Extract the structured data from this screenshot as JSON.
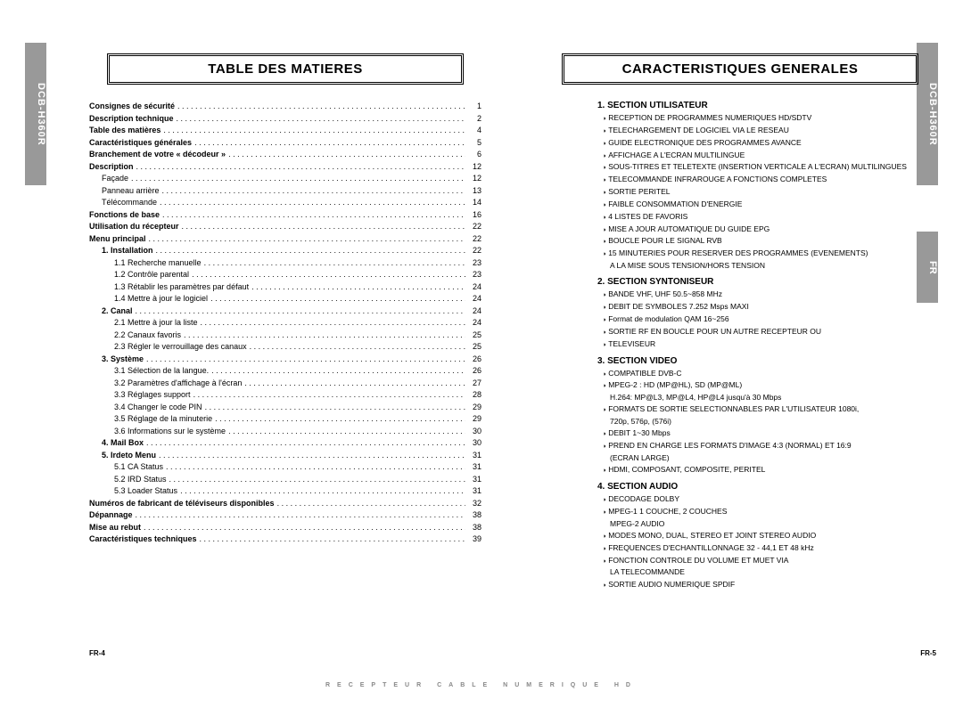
{
  "model": "DCB-H360R",
  "lang_tab": "FR",
  "titles": {
    "left": "TABLE DES MATIERES",
    "right": "CARACTERISTIQUES GENERALES"
  },
  "toc": [
    {
      "label": "Consignes de sécurité",
      "page": "1",
      "bold": true,
      "indent": 0
    },
    {
      "label": "Description technique",
      "page": "2",
      "bold": true,
      "indent": 0
    },
    {
      "label": "Table des matières",
      "page": "4",
      "bold": true,
      "indent": 0
    },
    {
      "label": "Caractéristiques générales",
      "page": "5",
      "bold": true,
      "indent": 0
    },
    {
      "label": "Branchement de votre « décodeur »",
      "page": "6",
      "bold": true,
      "indent": 0
    },
    {
      "label": "Description",
      "page": "12",
      "bold": true,
      "indent": 0
    },
    {
      "label": "Façade",
      "page": "12",
      "bold": false,
      "indent": 1
    },
    {
      "label": "Panneau arrière",
      "page": "13",
      "bold": false,
      "indent": 1
    },
    {
      "label": "Télécommande",
      "page": "14",
      "bold": false,
      "indent": 1
    },
    {
      "label": "Fonctions de base",
      "page": "16",
      "bold": true,
      "indent": 0
    },
    {
      "label": "Utilisation du récepteur",
      "page": "22",
      "bold": true,
      "indent": 0
    },
    {
      "label": "Menu principal",
      "page": "22",
      "bold": true,
      "indent": 0
    },
    {
      "label": "1. Installation",
      "page": "22",
      "bold": true,
      "indent": 1
    },
    {
      "label": "1.1 Recherche manuelle",
      "page": "23",
      "bold": false,
      "indent": 2
    },
    {
      "label": "1.2 Contrôle parental",
      "page": "23",
      "bold": false,
      "indent": 2
    },
    {
      "label": "1.3 Rétablir les paramètres par défaut",
      "page": "24",
      "bold": false,
      "indent": 2
    },
    {
      "label": "1.4 Mettre à jour le logiciel",
      "page": "24",
      "bold": false,
      "indent": 2
    },
    {
      "label": "2. Canal",
      "page": "24",
      "bold": true,
      "indent": 1
    },
    {
      "label": "2.1 Mettre à jour la liste",
      "page": "24",
      "bold": false,
      "indent": 2
    },
    {
      "label": "2.2 Canaux favoris",
      "page": "25",
      "bold": false,
      "indent": 2
    },
    {
      "label": "2.3 Régler le verrouillage des canaux",
      "page": "25",
      "bold": false,
      "indent": 2
    },
    {
      "label": "3. Système",
      "page": "26",
      "bold": true,
      "indent": 1
    },
    {
      "label": "3.1 Sélection de la langue.",
      "page": "26",
      "bold": false,
      "indent": 2
    },
    {
      "label": "3.2 Paramètres d'affichage à l'écran",
      "page": "27",
      "bold": false,
      "indent": 2
    },
    {
      "label": "3.3 Réglages support",
      "page": "28",
      "bold": false,
      "indent": 2
    },
    {
      "label": "3.4 Changer le code PIN",
      "page": "29",
      "bold": false,
      "indent": 2
    },
    {
      "label": "3.5 Réglage de la minuterie",
      "page": "29",
      "bold": false,
      "indent": 2
    },
    {
      "label": "3.6 Informations sur le système",
      "page": "30",
      "bold": false,
      "indent": 2
    },
    {
      "label": "4. Mail Box",
      "page": "30",
      "bold": true,
      "indent": 1
    },
    {
      "label": "5. Irdeto Menu",
      "page": "31",
      "bold": true,
      "indent": 1
    },
    {
      "label": "5.1 CA Status",
      "page": "31",
      "bold": false,
      "indent": 2
    },
    {
      "label": "5.2 IRD Status",
      "page": "31",
      "bold": false,
      "indent": 2
    },
    {
      "label": "5.3 Loader Status",
      "page": "31",
      "bold": false,
      "indent": 2
    },
    {
      "label": "Numéros de fabricant de téléviseurs disponibles",
      "page": "32",
      "bold": true,
      "indent": 0
    },
    {
      "label": "Dépannage",
      "page": "38",
      "bold": true,
      "indent": 0
    },
    {
      "label": "Mise au rebut",
      "page": "38",
      "bold": true,
      "indent": 0
    },
    {
      "label": "Caractéristiques techniques",
      "page": "39",
      "bold": true,
      "indent": 0
    }
  ],
  "sections": [
    {
      "head": "1. SECTION UTILISATEUR",
      "items": [
        {
          "t": "RECEPTION DE PROGRAMMES NUMERIQUES HD/SDTV"
        },
        {
          "t": "TELECHARGEMENT DE LOGICIEL VIA LE RESEAU"
        },
        {
          "t": "GUIDE ELECTRONIQUE DES PROGRAMMES AVANCE"
        },
        {
          "t": "AFFICHAGE A L'ECRAN MULTILINGUE"
        },
        {
          "t": "SOUS-TITRES ET TELETEXTE (INSERTION VERTICALE A L'ECRAN) MULTILINGUES"
        },
        {
          "t": "TELECOMMANDE INFRAROUGE A FONCTIONS COMPLETES"
        },
        {
          "t": "SORTIE PERITEL"
        },
        {
          "t": "FAIBLE CONSOMMATION D'ENERGIE"
        },
        {
          "t": "4 LISTES DE FAVORIS"
        },
        {
          "t": "MISE A JOUR AUTOMATIQUE DU GUIDE EPG"
        },
        {
          "t": "BOUCLE POUR LE SIGNAL RVB"
        },
        {
          "t": "15 MINUTERIES POUR RESERVER DES PROGRAMMES (EVENEMENTS)",
          "cont": "A LA MISE SOUS TENSION/HORS TENSION"
        }
      ]
    },
    {
      "head": "2. SECTION SYNTONISEUR",
      "items": [
        {
          "t": "BANDE VHF, UHF 50.5~858 MHz"
        },
        {
          "t": "DEBIT DE SYMBOLES 7.252 Msps MAXI"
        },
        {
          "t": "Format de modulation QAM 16~256"
        },
        {
          "t": "SORTIE RF EN BOUCLE POUR UN AUTRE RECEPTEUR OU"
        },
        {
          "t": "TELEVISEUR"
        }
      ]
    },
    {
      "head": "3. SECTION VIDEO",
      "items": [
        {
          "t": "COMPATIBLE DVB-C"
        },
        {
          "t": "MPEG-2 : HD (MP@HL), SD (MP@ML)",
          "cont": "H.264: MP@L3, MP@L4, HP@L4 jusqu'à 30 Mbps"
        },
        {
          "t": "FORMATS DE SORTIE SELECTIONNABLES PAR L'UTILISATEUR 1080i,",
          "cont": "720p, 576p, (576i)"
        },
        {
          "t": "DEBIT 1~30 Mbps"
        },
        {
          "t": "PREND EN CHARGE LES FORMATS D'IMAGE 4:3 (NORMAL) ET 16:9",
          "cont": "(ECRAN LARGE)"
        },
        {
          "t": "HDMI, COMPOSANT, COMPOSITE, PERITEL"
        }
      ]
    },
    {
      "head": "4. SECTION AUDIO",
      "items": [
        {
          "t": "DECODAGE DOLBY"
        },
        {
          "t": "MPEG-1 1 COUCHE, 2 COUCHES",
          "cont": "MPEG-2 AUDIO"
        },
        {
          "t": "MODES MONO, DUAL, STEREO ET JOINT STEREO AUDIO"
        },
        {
          "t": "FREQUENCES D'ECHANTILLONNAGE 32 - 44,1 ET 48 kHz"
        },
        {
          "t": "FONCTION CONTROLE DU VOLUME ET MUET VIA",
          "cont": "LA TELECOMMANDE"
        },
        {
          "t": "SORTIE AUDIO NUMERIQUE SPDIF"
        }
      ]
    }
  ],
  "footer": {
    "left": "FR-4",
    "right": "FR-5",
    "mid": "RECEPTEUR CABLE NUMERIQUE HD"
  }
}
